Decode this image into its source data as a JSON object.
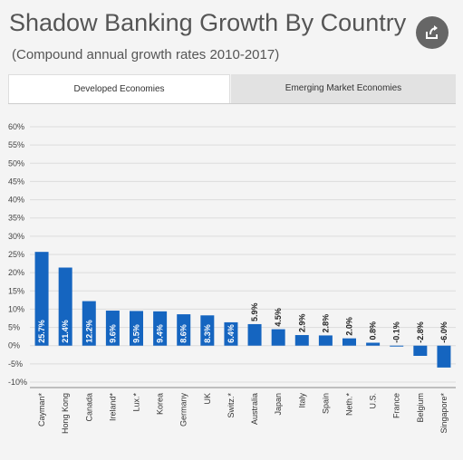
{
  "header": {
    "title": "Shadow Banking Growth By Country",
    "subtitle": "(Compound annual growth rates 2010-2017)",
    "share_icon": "share-icon"
  },
  "tabs": [
    {
      "label": "Developed Economies",
      "active": true
    },
    {
      "label": "Emerging Market Economies",
      "active": false
    }
  ],
  "colors": {
    "bar": "#1565c0",
    "grid": "#dcdcdc",
    "background": "#f4f4f4",
    "active_tab": "#ffffff",
    "inactive_tab": "#e2e2e2"
  },
  "chart_data": {
    "type": "bar",
    "title": "",
    "xlabel": "",
    "ylabel": "",
    "ylim": [
      -10,
      60
    ],
    "yticks": [
      60,
      55,
      50,
      45,
      40,
      35,
      30,
      25,
      20,
      15,
      10,
      5,
      0,
      -5,
      -10
    ],
    "grid": true,
    "categories": [
      "Cayman*",
      "Hong Kong",
      "Canada",
      "Ireland*",
      "Lux.*",
      "Korea",
      "Germany",
      "UK",
      "Switz.*",
      "Australia",
      "Japan",
      "Italy",
      "Spain",
      "Neth.*",
      "U.S.",
      "France",
      "Belgium",
      "Singapore*"
    ],
    "values": [
      25.7,
      21.4,
      12.2,
      9.6,
      9.5,
      9.4,
      8.6,
      8.3,
      6.4,
      5.9,
      4.5,
      2.9,
      2.8,
      2.0,
      0.8,
      -0.1,
      -2.8,
      -6.0
    ],
    "data_labels": [
      "25.7%",
      "21.4%",
      "12.2%",
      "9.6%",
      "9.5%",
      "9.4%",
      "8.6%",
      "8.3%",
      "6.4%",
      "5.9%",
      "4.5%",
      "2.9%",
      "2.8%",
      "2.0%",
      "0.8%",
      "-0.1%",
      "-2.8%",
      "-6.0%"
    ]
  }
}
